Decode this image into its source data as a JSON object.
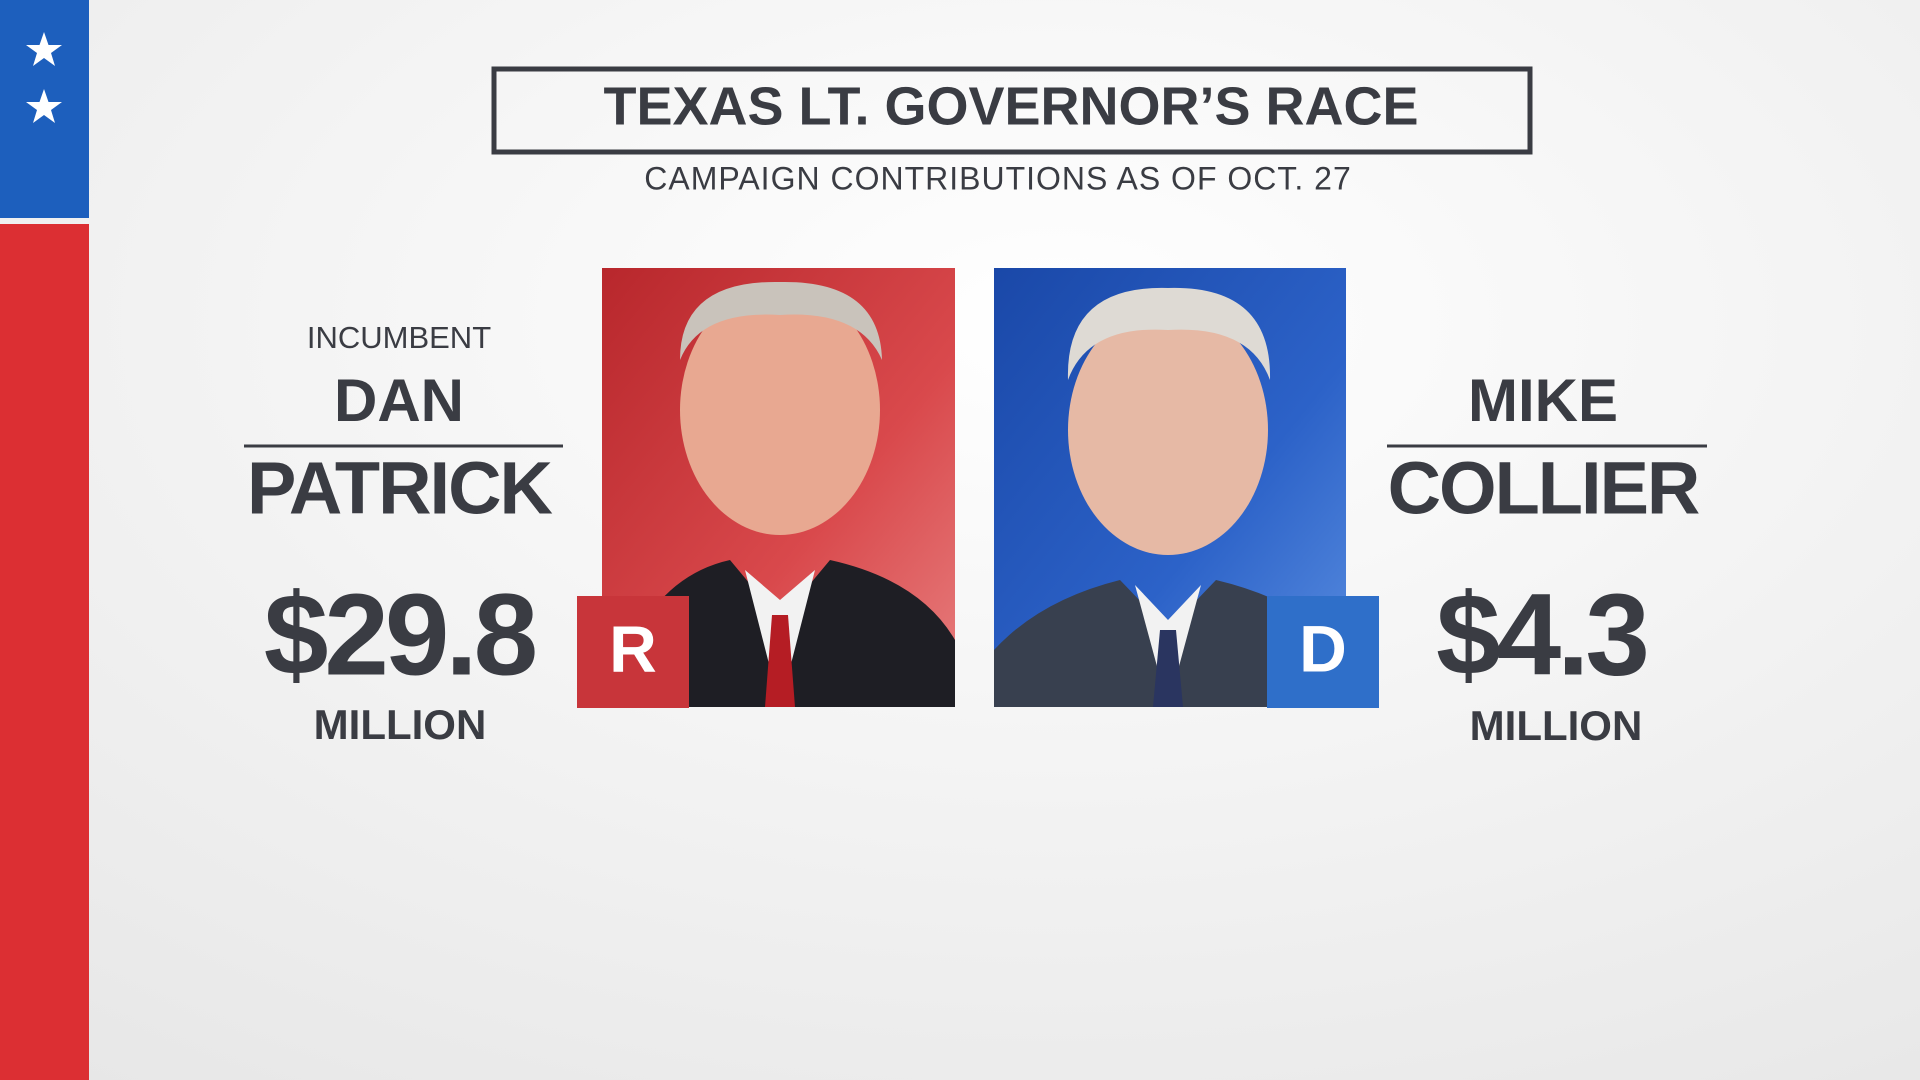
{
  "header": {
    "title": "TEXAS LT. GOVERNOR’S RACE",
    "subtitle": "CAMPAIGN CONTRIBUTIONS AS OF OCT. 27"
  },
  "candidates": [
    {
      "label": "INCUMBENT",
      "first_name": "DAN",
      "last_name": "PATRICK",
      "party": "R",
      "amount": "$29.8",
      "unit": "MILLION"
    },
    {
      "first_name": "MIKE",
      "last_name": "COLLIER",
      "party": "D",
      "amount": "$4.3",
      "unit": "MILLION"
    }
  ]
}
